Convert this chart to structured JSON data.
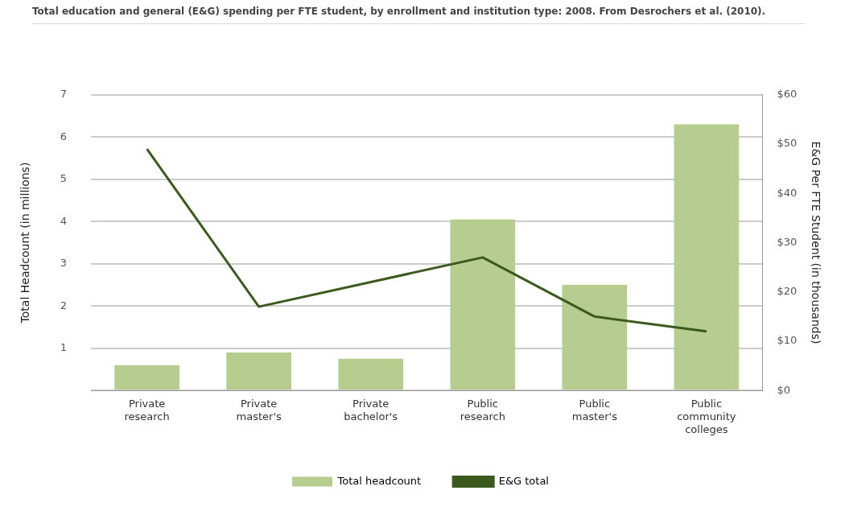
{
  "chart_data": {
    "type": "bar",
    "title": "Total education and general (E&G) spending per FTE student, by enrollment and institution type: 2008. From Desrochers et al. (2010).",
    "ylabel": "Total Headcount (in millions)",
    "y2label": "E&G Per FTE Student (in thousands)",
    "categories": [
      "Private research",
      "Private master's",
      "Private bachelor's",
      "Public research",
      "Public master's",
      "Public community colleges"
    ],
    "series": [
      {
        "name": "Total headcount",
        "color": "#b6cd8f",
        "values": [
          0.6,
          0.9,
          0.75,
          4.05,
          2.5,
          6.3
        ]
      },
      {
        "name": "E&G total",
        "type": "line",
        "axis": "y2",
        "color": "#3d5a1e",
        "values": [
          49,
          17,
          22,
          27,
          15,
          12
        ]
      }
    ],
    "ylim": [
      0,
      7
    ],
    "yticks": [
      {
        "value": 0,
        "label": null
      },
      1,
      2,
      3,
      4,
      5,
      6,
      7
    ],
    "y2lim": [
      0,
      60
    ],
    "y2ticks": [
      {
        "value": 0,
        "label": "$0"
      },
      {
        "value": 10,
        "label": "$10"
      },
      {
        "value": 20,
        "label": "$20"
      },
      {
        "value": 30,
        "label": "$30"
      },
      {
        "value": 40,
        "label": "$40"
      },
      {
        "value": 50,
        "label": "$50"
      },
      {
        "value": 60,
        "label": "$60"
      }
    ],
    "grid": "y",
    "legend": "bottom",
    "marker": "none",
    "line_style": "solid"
  }
}
